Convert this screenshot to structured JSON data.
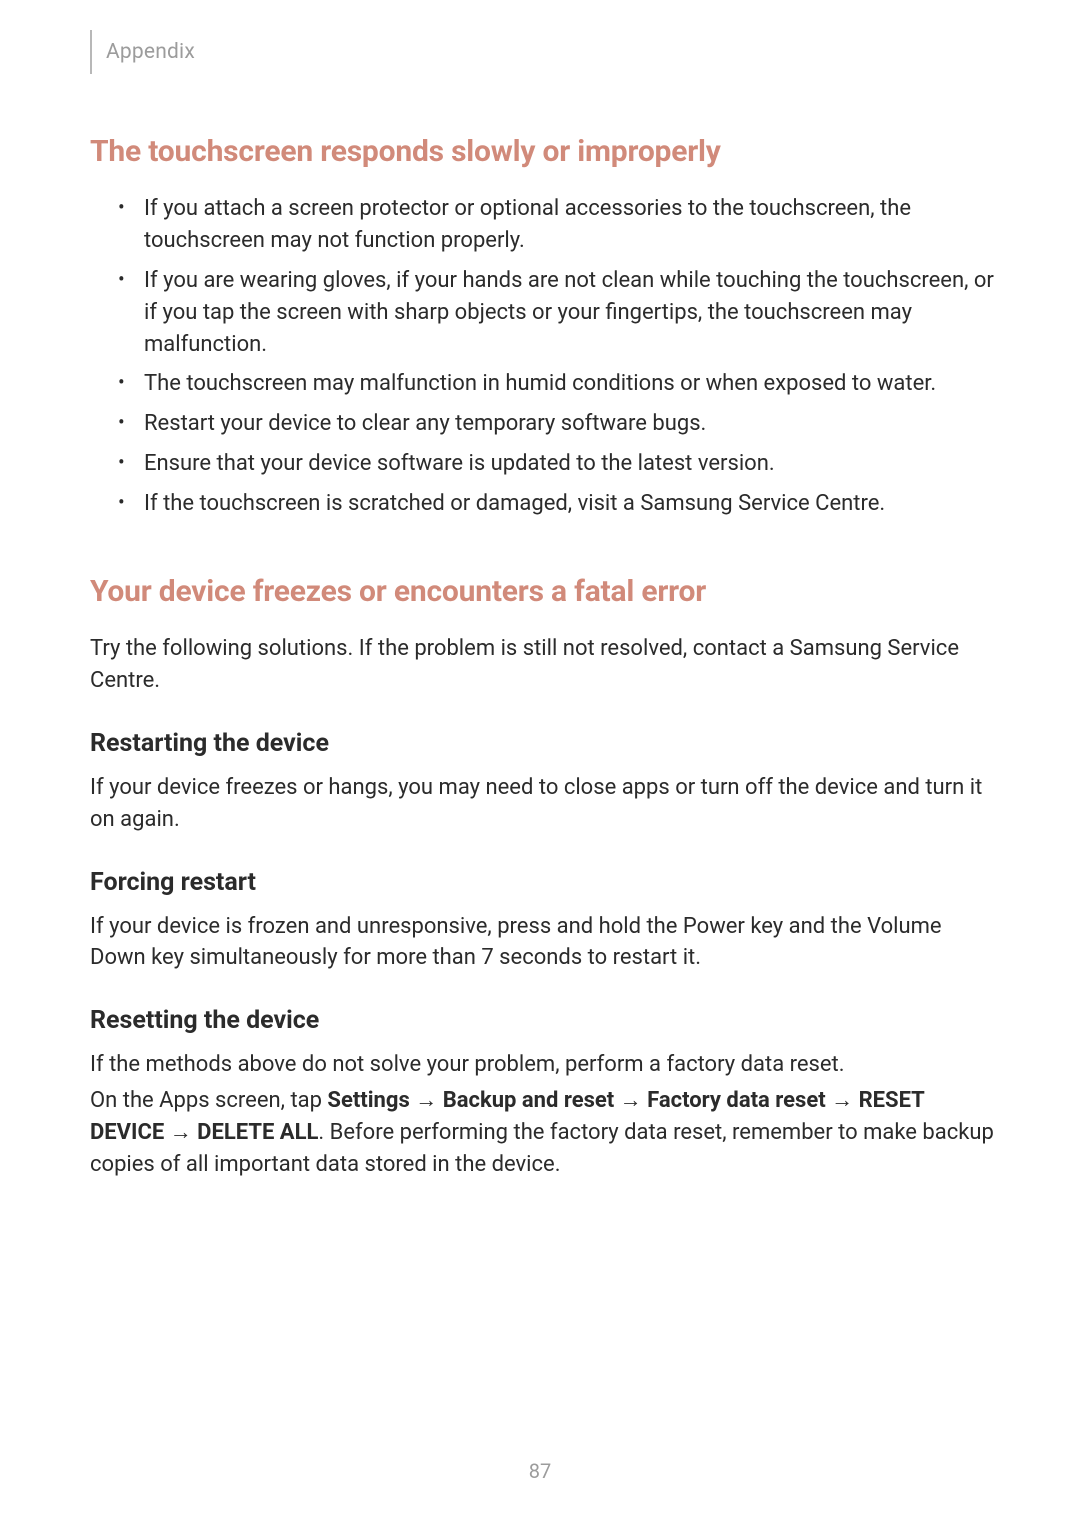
{
  "header": {
    "section": "Appendix"
  },
  "touchscreen": {
    "title": "The touchscreen responds slowly or improperly",
    "items": [
      "If you attach a screen protector or optional accessories to the touchscreen, the touchscreen may not function properly.",
      "If you are wearing gloves, if your hands are not clean while touching the touchscreen, or if you tap the screen with sharp objects or your fingertips, the touchscreen may malfunction.",
      "The touchscreen may malfunction in humid conditions or when exposed to water.",
      "Restart your device to clear any temporary software bugs.",
      "Ensure that your device software is updated to the latest version.",
      "If the touchscreen is scratched or damaged, visit a Samsung Service Centre."
    ]
  },
  "freezes": {
    "title": "Your device freezes or encounters a fatal error",
    "intro": "Try the following solutions. If the problem is still not resolved, contact a Samsung Service Centre.",
    "restart": {
      "heading": "Restarting the device",
      "body": "If your device freezes or hangs, you may need to close apps or turn off the device and turn it on again."
    },
    "force": {
      "heading": "Forcing restart",
      "body": "If your device is frozen and unresponsive, press and hold the Power key and the Volume Down key simultaneously for more than 7 seconds to restart it."
    },
    "reset": {
      "heading": "Resetting the device",
      "line1": "If the methods above do not solve your problem, perform a factory data reset.",
      "pre": "On the Apps screen, tap ",
      "b1": "Settings",
      "a1": " → ",
      "b2": "Backup and reset",
      "a2": " → ",
      "b3": "Factory data reset",
      "a3": " → ",
      "b4": "RESET DEVICE",
      "a4": " → ",
      "b5": "DELETE ALL",
      "tail": ". Before performing the factory data reset, remember to make backup copies of all important data stored in the device."
    }
  },
  "pageNumber": "87"
}
